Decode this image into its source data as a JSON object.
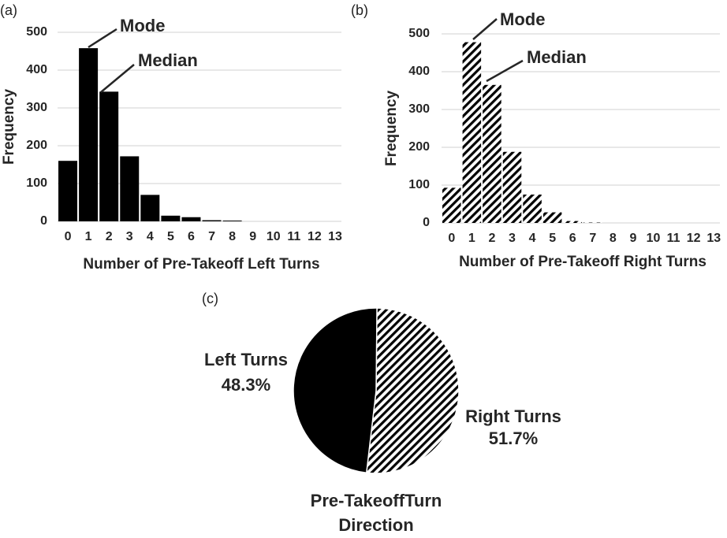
{
  "chart_data": [
    {
      "type": "bar",
      "panel_label": "(a)",
      "x_label": "Number of Pre-Takeoff Left Turns",
      "y_label": "Frequency",
      "categories": [
        "0",
        "1",
        "2",
        "3",
        "4",
        "5",
        "6",
        "7",
        "8",
        "9",
        "10",
        "11",
        "12",
        "13"
      ],
      "values": [
        160,
        458,
        343,
        172,
        70,
        15,
        11,
        3,
        2,
        0,
        0,
        0,
        0,
        0
      ],
      "color": "#000000",
      "fill_pattern": "solid",
      "ylim": [
        0,
        500
      ],
      "yticks": [
        0,
        100,
        200,
        300,
        400,
        500
      ],
      "grid": true,
      "annotations": [
        "Mode",
        "Median"
      ]
    },
    {
      "type": "bar",
      "panel_label": "(b)",
      "x_label": "Number of Pre-Takeoff Right Turns",
      "y_label": "Frequency",
      "categories": [
        "0",
        "1",
        "2",
        "3",
        "4",
        "5",
        "6",
        "7",
        "8",
        "9",
        "10",
        "11",
        "12",
        "13"
      ],
      "values": [
        93,
        478,
        365,
        188,
        75,
        28,
        5,
        1,
        0,
        0,
        0,
        0,
        0,
        0
      ],
      "color": "#000000",
      "fill_pattern": "diagonal-hatch",
      "ylim": [
        0,
        500
      ],
      "yticks": [
        0,
        100,
        200,
        300,
        400,
        500
      ],
      "grid": true,
      "annotations": [
        "Mode",
        "Median"
      ]
    },
    {
      "type": "pie",
      "panel_label": "(c)",
      "title": "Pre-TakeoffTurn Direction",
      "categories": [
        "Left Turns",
        "Right Turns"
      ],
      "values": [
        48.3,
        51.7
      ],
      "value_labels": [
        "48.3%",
        "51.7%"
      ],
      "colors": [
        "#000000",
        "#000000"
      ],
      "fill_patterns": [
        "solid",
        "diagonal-hatch"
      ]
    }
  ]
}
